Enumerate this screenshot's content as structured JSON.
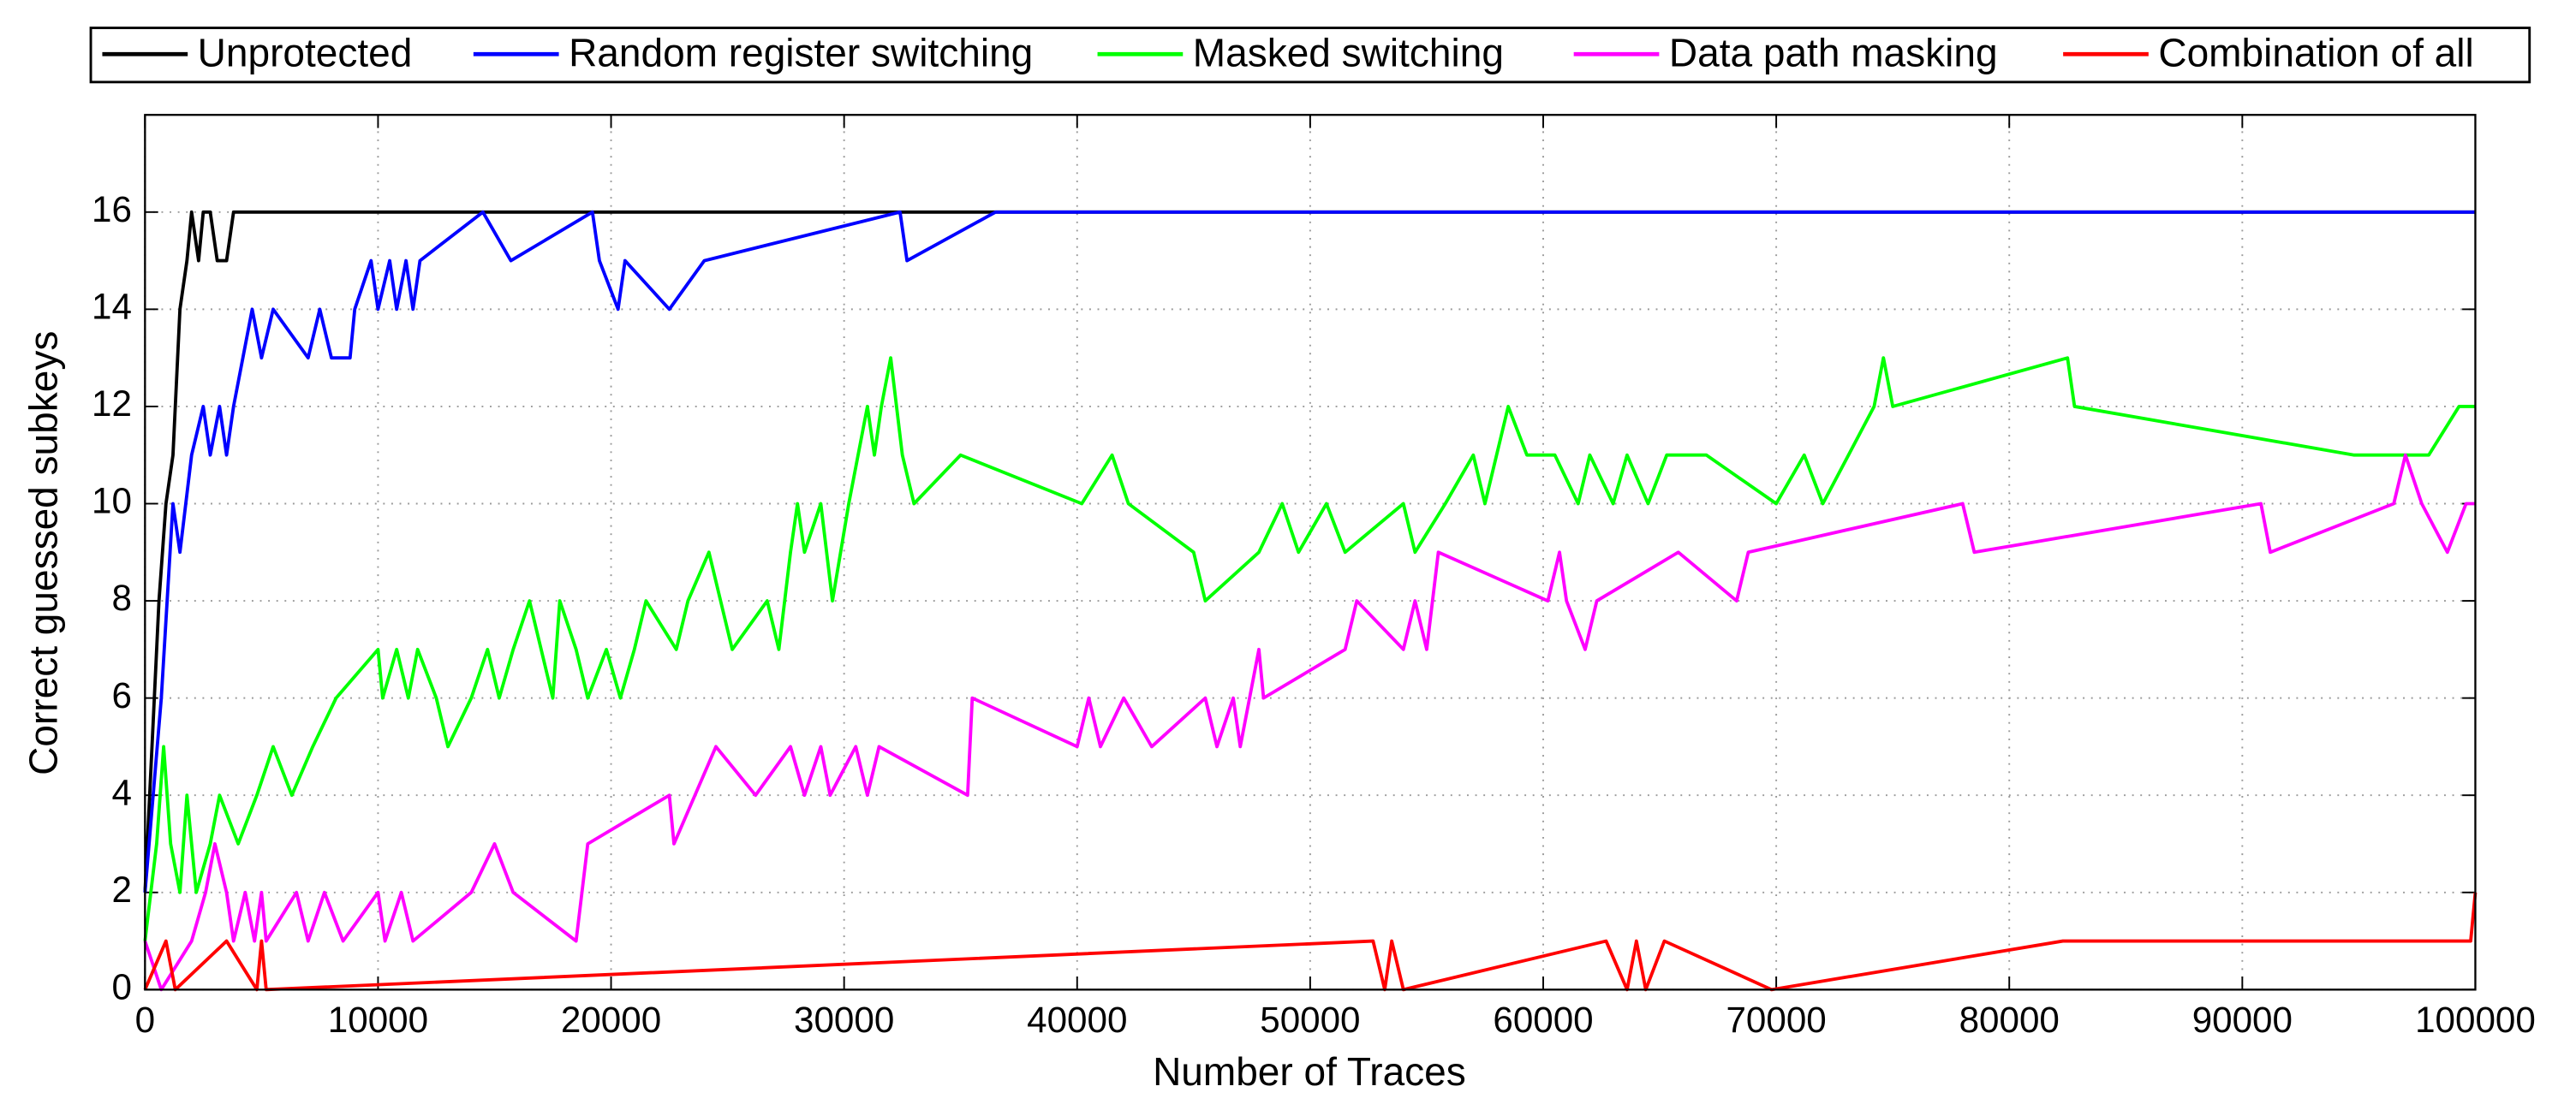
{
  "chart_data": {
    "type": "line",
    "xlabel": "Number of Traces",
    "ylabel": "Correct guessed subkeys",
    "xlim": [
      0,
      100000
    ],
    "xticks": [
      0,
      10000,
      20000,
      30000,
      40000,
      50000,
      60000,
      70000,
      80000,
      90000,
      100000
    ],
    "ylim": [
      0,
      18
    ],
    "yticks": [
      0,
      2,
      4,
      6,
      8,
      10,
      12,
      14,
      16
    ],
    "grid": true,
    "legend": "top",
    "series": [
      {
        "name": "Unprotected",
        "color": "#000000",
        "x": [
          0,
          300,
          600,
          900,
          1200,
          1500,
          1800,
          2000,
          2300,
          2500,
          2800,
          3100,
          3500,
          3800,
          100000
        ],
        "values": [
          2,
          5,
          8,
          10,
          11,
          14,
          15,
          16,
          15,
          16,
          16,
          15,
          15,
          16,
          16
        ]
      },
      {
        "name": "Random register switching",
        "color": "#0000ff",
        "x": [
          0,
          700,
          1200,
          1500,
          2000,
          2500,
          2800,
          3200,
          3500,
          3800,
          4200,
          4600,
          5000,
          5500,
          7000,
          7500,
          8000,
          8800,
          9000,
          9700,
          10000,
          10500,
          10800,
          11200,
          11500,
          11800,
          14500,
          15700,
          19200,
          19500,
          20300,
          20600,
          22500,
          24000,
          32400,
          32700,
          36500,
          100000
        ],
        "values": [
          2,
          6,
          10,
          9,
          11,
          12,
          11,
          12,
          11,
          12,
          13,
          14,
          13,
          14,
          13,
          14,
          13,
          13,
          14,
          15,
          14,
          15,
          14,
          15,
          14,
          15,
          16,
          15,
          16,
          15,
          14,
          15,
          14,
          15,
          16,
          15,
          16,
          16
        ]
      },
      {
        "name": "Masked switching",
        "color": "#00ff00",
        "x": [
          0,
          500,
          800,
          1100,
          1500,
          1800,
          2200,
          2800,
          3200,
          4000,
          4800,
          5500,
          6300,
          7200,
          8200,
          10000,
          10200,
          10800,
          11300,
          11700,
          12500,
          13000,
          14000,
          14700,
          15200,
          15800,
          16500,
          17000,
          17500,
          17800,
          18500,
          19000,
          19800,
          20400,
          21000,
          21500,
          22800,
          23300,
          24200,
          24700,
          25200,
          26700,
          27200,
          27700,
          28000,
          28300,
          29000,
          29500,
          30200,
          31000,
          31300,
          31600,
          32000,
          32500,
          33000,
          35000,
          40200,
          41500,
          42200,
          45000,
          45500,
          47800,
          48800,
          49500,
          50700,
          51500,
          54000,
          54500,
          55800,
          57000,
          57500,
          58500,
          59300,
          60500,
          61500,
          62000,
          63000,
          63600,
          64500,
          65300,
          67000,
          70000,
          71200,
          72000,
          74200,
          74600,
          75000,
          82500,
          82800,
          94800,
          98000,
          99300,
          100000
        ],
        "values": [
          1,
          3,
          5,
          3,
          2,
          4,
          2,
          3,
          4,
          3,
          4,
          5,
          4,
          5,
          6,
          7,
          6,
          7,
          6,
          7,
          6,
          5,
          6,
          7,
          6,
          7,
          8,
          7,
          6,
          8,
          7,
          6,
          7,
          6,
          7,
          8,
          7,
          8,
          9,
          8,
          7,
          8,
          7,
          9,
          10,
          9,
          10,
          8,
          10,
          12,
          11,
          12,
          13,
          11,
          10,
          11,
          10,
          11,
          10,
          9,
          8,
          9,
          10,
          9,
          10,
          9,
          10,
          9,
          10,
          11,
          10,
          12,
          11,
          11,
          10,
          11,
          10,
          11,
          10,
          11,
          11,
          10,
          11,
          10,
          12,
          13,
          12,
          13,
          12,
          11,
          11,
          12,
          12
        ]
      },
      {
        "name": "Data path masking",
        "color": "#ff00ff",
        "x": [
          0,
          700,
          2000,
          2600,
          3000,
          3500,
          3800,
          4300,
          4700,
          5000,
          5200,
          6500,
          7000,
          7700,
          8500,
          10000,
          10300,
          11000,
          11500,
          14000,
          15000,
          15800,
          18500,
          19000,
          22500,
          22700,
          24500,
          26200,
          27700,
          28300,
          29000,
          29400,
          30500,
          31000,
          31500,
          35300,
          35500,
          40000,
          40500,
          41000,
          42000,
          43200,
          45500,
          46000,
          46700,
          47000,
          47800,
          48000,
          51500,
          52000,
          54000,
          54500,
          55000,
          55500,
          60200,
          60700,
          61000,
          61800,
          62300,
          65800,
          68300,
          68800,
          78000,
          78500,
          90800,
          91200,
          96500,
          97000,
          97700,
          98800,
          99600,
          100000
        ],
        "values": [
          1,
          0,
          1,
          2,
          3,
          2,
          1,
          2,
          1,
          2,
          1,
          2,
          1,
          2,
          1,
          2,
          1,
          2,
          1,
          2,
          3,
          2,
          1,
          3,
          4,
          3,
          5,
          4,
          5,
          4,
          5,
          4,
          5,
          4,
          5,
          4,
          6,
          5,
          6,
          5,
          6,
          5,
          6,
          5,
          6,
          5,
          7,
          6,
          7,
          8,
          7,
          8,
          7,
          9,
          8,
          9,
          8,
          7,
          8,
          9,
          8,
          9,
          10,
          9,
          10,
          9,
          10,
          11,
          10,
          9,
          10,
          10
        ]
      },
      {
        "name": "Combination of all",
        "color": "#ff0000",
        "x": [
          0,
          900,
          1300,
          3500,
          4800,
          5000,
          5200,
          52700,
          53200,
          53500,
          54000,
          62700,
          63600,
          64000,
          64400,
          65200,
          69800,
          82300,
          99800,
          100000
        ],
        "values": [
          0,
          1,
          0,
          1,
          0,
          1,
          0,
          1,
          0,
          1,
          0,
          1,
          0,
          1,
          0,
          1,
          0,
          1,
          1,
          2
        ]
      }
    ]
  }
}
